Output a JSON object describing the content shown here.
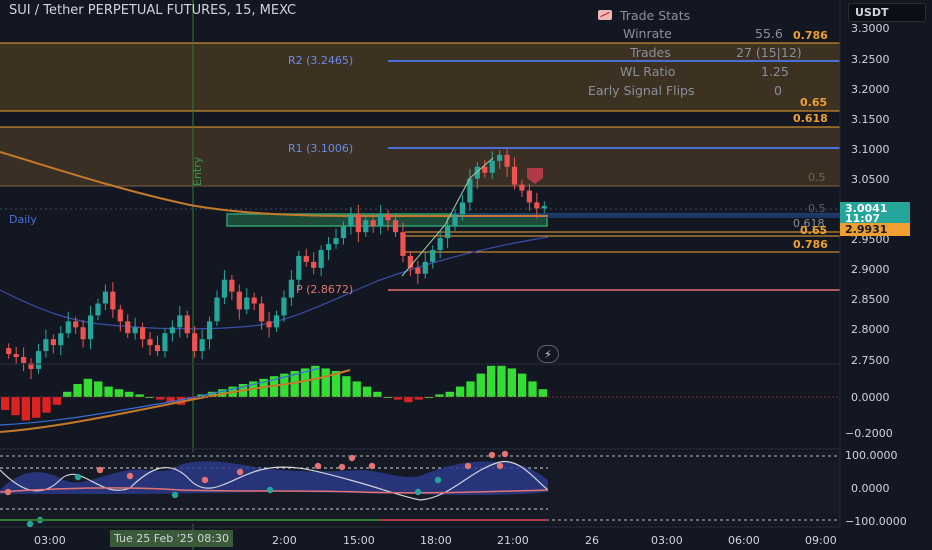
{
  "header": {
    "symbol_title": "SUI / Tether PERPETUAL FUTURES, 15, MEXC",
    "currency_button": "USDT"
  },
  "trade_stats": {
    "title": "Trade Stats",
    "rows": [
      {
        "label": "Winrate",
        "value": "55.6"
      },
      {
        "label": "Trades",
        "value": "27 (15|12)"
      },
      {
        "label": "WL Ratio",
        "value": "1.25"
      },
      {
        "label": "Early Signal Flips",
        "value": "0"
      }
    ]
  },
  "price_axis": {
    "ticks": [
      "3.3000",
      "3.2500",
      "3.2000",
      "3.1500",
      "3.1000",
      "3.0500",
      "2.9500",
      "2.9000",
      "2.8500",
      "2.8000",
      "2.7500"
    ],
    "current_price": "3.0041",
    "countdown": "11:07",
    "secondary_price": "2.9931"
  },
  "fib_labels": {
    "f0786_top": "0.786",
    "f065": "0.65",
    "f0618_top": "0.618",
    "f05_top": "0.5",
    "f05": "0.5",
    "f0618": "0.618",
    "f065_low": "0.65",
    "f0786": "0.786"
  },
  "levels": {
    "r2": "R2 (3.2465)",
    "r1": "R1 (3.1006)",
    "pivot": "P (2.8672)",
    "daily": "Daily",
    "entry": "Entry"
  },
  "oscillator_axis": {
    "ticks": [
      "0.0000",
      "−0.2000"
    ]
  },
  "rsi_axis": {
    "ticks": [
      "100.0000",
      "0.0000",
      "−100.0000"
    ]
  },
  "time_axis": {
    "ticks": [
      "03:00",
      "15:00",
      "18:00",
      "21:00",
      "26",
      "03:00",
      "06:00",
      "09:00"
    ],
    "cursor_label": "Tue 25 Feb '25  08:30",
    "cursor_tail": "2:00"
  },
  "colors": {
    "background": "#131722",
    "bull": "#26a69a",
    "bear": "#ef5350",
    "fib_orange": "#f0a030",
    "pivot_blue": "#4a6fd8",
    "pivot_red": "#e57373",
    "entry_green": "#2e7d32",
    "hist_green": "#33dd33",
    "hist_red": "#dd2222"
  },
  "chart_data": {
    "type": "candlestick",
    "price_series": [
      2.755,
      2.75,
      2.74,
      2.73,
      2.76,
      2.78,
      2.77,
      2.79,
      2.81,
      2.8,
      2.78,
      2.82,
      2.84,
      2.86,
      2.83,
      2.81,
      2.79,
      2.8,
      2.78,
      2.77,
      2.76,
      2.79,
      2.8,
      2.82,
      2.79,
      2.76,
      2.78,
      2.81,
      2.85,
      2.88,
      2.86,
      2.83,
      2.85,
      2.84,
      2.81,
      2.8,
      2.82,
      2.85,
      2.88,
      2.92,
      2.91,
      2.9,
      2.93,
      2.94,
      2.95,
      2.97,
      2.99,
      2.96,
      2.98,
      2.97,
      2.99,
      2.98,
      2.96,
      2.92,
      2.9,
      2.89,
      2.91,
      2.93,
      2.95,
      2.97,
      2.99,
      3.01,
      3.05,
      3.07,
      3.06,
      3.08,
      3.09,
      3.07,
      3.04,
      3.03,
      3.01,
      3.0,
      3.004
    ],
    "ylim": [
      2.72,
      3.32
    ],
    "histogram": [
      -0.05,
      -0.07,
      -0.09,
      -0.08,
      -0.06,
      -0.03,
      0.02,
      0.05,
      0.07,
      0.06,
      0.04,
      0.03,
      0.02,
      0.01,
      0.0,
      -0.01,
      -0.02,
      -0.03,
      -0.01,
      0.01,
      0.02,
      0.03,
      0.04,
      0.05,
      0.06,
      0.07,
      0.08,
      0.09,
      0.1,
      0.11,
      0.12,
      0.11,
      0.1,
      0.08,
      0.06,
      0.04,
      0.02,
      0.0,
      -0.01,
      -0.02,
      -0.01,
      0.0,
      0.01,
      0.02,
      0.04,
      0.06,
      0.09,
      0.12,
      0.12,
      0.11,
      0.09,
      0.06,
      0.03
    ]
  }
}
